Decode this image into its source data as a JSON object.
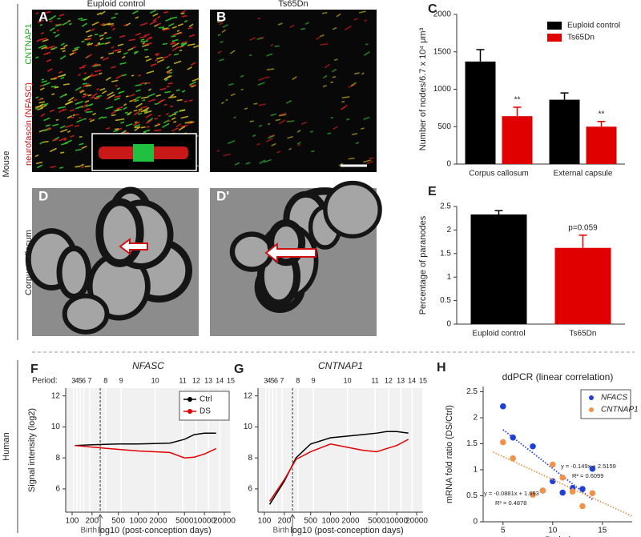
{
  "figure": {
    "side_labels": [
      "Mouse",
      "Human"
    ],
    "images": [
      {
        "panel": "A",
        "title": "Euploid control"
      },
      {
        "panel": "B",
        "title": "Ts65Dn"
      },
      {
        "panel": "D"
      },
      {
        "panel": "D'"
      }
    ],
    "stain_labels": [
      "CNTNAP1",
      "neurofascin (NFASC)"
    ],
    "row_label": "Corpus callosum"
  },
  "chart_data": [
    {
      "panel": "C",
      "type": "bar",
      "ylabel": "Number of nodes/6.7 x 10⁴ μm³",
      "categories": [
        "Corpus callosum",
        "External capsule"
      ],
      "series": [
        {
          "name": "Euploid control",
          "color": "#000000",
          "values": [
            1370,
            860
          ],
          "errors": [
            160,
            90
          ]
        },
        {
          "name": "Ts65Dn",
          "color": "#e00000",
          "values": [
            640,
            500
          ],
          "errors": [
            120,
            70
          ],
          "annotations": [
            "**",
            "**"
          ]
        }
      ],
      "ylim": [
        0,
        2000
      ],
      "yticks": [
        0,
        500,
        1000,
        1500,
        2000
      ],
      "legend": "upper right"
    },
    {
      "panel": "E",
      "type": "bar",
      "ylabel": "Percentage of paranodes",
      "categories": [
        "Euploid control",
        "Ts65Dn"
      ],
      "series": [
        {
          "colors": [
            "#000000",
            "#e00000"
          ],
          "values": [
            2.33,
            1.62
          ],
          "errors": [
            0.08,
            0.27
          ],
          "annotations": [
            null,
            "p=0.059"
          ]
        }
      ],
      "ylim": [
        0,
        2.5
      ],
      "yticks": [
        0,
        0.5,
        1,
        1.5,
        2,
        2.5
      ]
    },
    {
      "panel": "F",
      "type": "line",
      "title": "NFASC",
      "ylabel": "Signal intensity (log2)",
      "xlabel": "log10 (post-conception days)",
      "xscale": "log",
      "x": [
        110,
        200,
        500,
        1000,
        3000,
        5000,
        7000,
        10000,
        15000
      ],
      "series": [
        {
          "name": "Ctrl",
          "color": "#000000",
          "values": [
            8.8,
            8.85,
            8.9,
            8.9,
            8.95,
            9.2,
            9.5,
            9.6,
            9.6
          ]
        },
        {
          "name": "DS",
          "color": "#e00000",
          "values": [
            8.8,
            8.7,
            8.55,
            8.45,
            8.35,
            8.0,
            8.05,
            8.25,
            8.6
          ]
        }
      ],
      "xlim": [
        80,
        25000
      ],
      "xticks": [
        100,
        200,
        500,
        1000,
        2000,
        5000,
        10000,
        20000
      ],
      "ylim": [
        4.5,
        12.5
      ],
      "yticks": [
        6,
        8,
        10,
        12
      ],
      "period_label": "Period:",
      "period_ticks": [
        {
          "value": 105,
          "label": "3"
        },
        {
          "value": 118,
          "label": "4"
        },
        {
          "value": 133,
          "label": "5"
        },
        {
          "value": 150,
          "label": "6"
        },
        {
          "value": 185,
          "label": "7"
        },
        {
          "value": 320,
          "label": "8"
        },
        {
          "value": 550,
          "label": "9"
        },
        {
          "value": 1800,
          "label": "10"
        },
        {
          "value": 4700,
          "label": "11"
        },
        {
          "value": 7500,
          "label": "12"
        },
        {
          "value": 11500,
          "label": "13"
        },
        {
          "value": 17000,
          "label": "14"
        },
        {
          "value": 25000,
          "label": "15"
        }
      ],
      "birth": {
        "value": 266,
        "label": "Birth"
      },
      "legend": "upper right"
    },
    {
      "panel": "G",
      "type": "line",
      "title": "CNTNAP1",
      "xlabel": "log10 (post-conception days)",
      "xscale": "log",
      "x": [
        120,
        200,
        300,
        500,
        1000,
        3000,
        5000,
        7000,
        10000,
        15000
      ],
      "series": [
        {
          "name": "Ctrl",
          "color": "#000000",
          "values": [
            5.0,
            6.5,
            8.0,
            8.9,
            9.3,
            9.5,
            9.6,
            9.7,
            9.7,
            9.6
          ]
        },
        {
          "name": "DS",
          "color": "#e00000",
          "values": [
            5.2,
            6.6,
            7.9,
            8.4,
            8.9,
            8.5,
            8.4,
            8.6,
            8.8,
            9.2
          ]
        }
      ],
      "xlim": [
        80,
        25000
      ],
      "xticks": [
        100,
        200,
        500,
        1000,
        2000,
        5000,
        10000,
        20000
      ],
      "ylim": [
        4.5,
        12.5
      ],
      "yticks": [
        6,
        8,
        10,
        12
      ],
      "period_ticks": [
        {
          "value": 105,
          "label": "3"
        },
        {
          "value": 118,
          "label": "4"
        },
        {
          "value": 133,
          "label": "5"
        },
        {
          "value": 150,
          "label": "6"
        },
        {
          "value": 185,
          "label": "7"
        },
        {
          "value": 320,
          "label": "8"
        },
        {
          "value": 550,
          "label": "9"
        },
        {
          "value": 1800,
          "label": "10"
        },
        {
          "value": 4700,
          "label": "11"
        },
        {
          "value": 7500,
          "label": "12"
        },
        {
          "value": 11500,
          "label": "13"
        },
        {
          "value": 17000,
          "label": "14"
        },
        {
          "value": 25000,
          "label": "15"
        }
      ],
      "birth": {
        "value": 266,
        "label": "Birth"
      }
    },
    {
      "panel": "H",
      "type": "scatter",
      "title": "ddPCR (linear correlation)",
      "xlabel": "Period",
      "ylabel": "mRNA fold ratio (DS/Ctrl)",
      "series": [
        {
          "name": "NFACS",
          "color": "#1f3fd8",
          "x": [
            5,
            6,
            8,
            9,
            10,
            11,
            12,
            13,
            14
          ],
          "values": [
            2.22,
            1.62,
            1.45,
            0.6,
            0.78,
            0.56,
            0.65,
            0.63,
            1.02
          ],
          "trend": {
            "x": [
              5,
              14
            ],
            "values": [
              1.771,
              0.43
            ]
          },
          "equation": [
            "y = -0.149x + 2.5159",
            "R² = 0.6099"
          ]
        },
        {
          "name": "CNTNAP1",
          "color": "#f0924a",
          "x": [
            5,
            6,
            8,
            9,
            10,
            11,
            12,
            13,
            14
          ],
          "values": [
            1.53,
            1.22,
            0.52,
            0.6,
            1.1,
            0.85,
            0.58,
            0.3,
            0.55
          ],
          "trend": {
            "x": [
              4,
              18
            ],
            "values": [
              1.341,
              0.107
            ]
          },
          "equation": [
            "y = -0.0881x + 1.693",
            "R² = 0.4878"
          ]
        }
      ],
      "xlim": [
        3,
        18
      ],
      "xticks": [
        5,
        10,
        15
      ],
      "ylim": [
        0,
        2.6
      ],
      "yticks": [
        0,
        0.5,
        1,
        1.5,
        2,
        2.5
      ],
      "legend": "upper right"
    }
  ]
}
